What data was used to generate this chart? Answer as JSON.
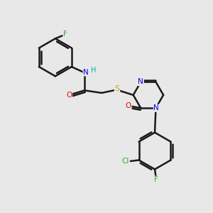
{
  "background_color": "#e8e8e8",
  "bond_color": "#1a1a1a",
  "atom_colors": {
    "F": "#33aa33",
    "N": "#0000ee",
    "O": "#ee0000",
    "S": "#ccaa00",
    "Cl": "#33aa33",
    "C": "#1a1a1a",
    "H": "#00aaaa"
  },
  "figsize": [
    3.0,
    3.0
  ],
  "dpi": 100
}
